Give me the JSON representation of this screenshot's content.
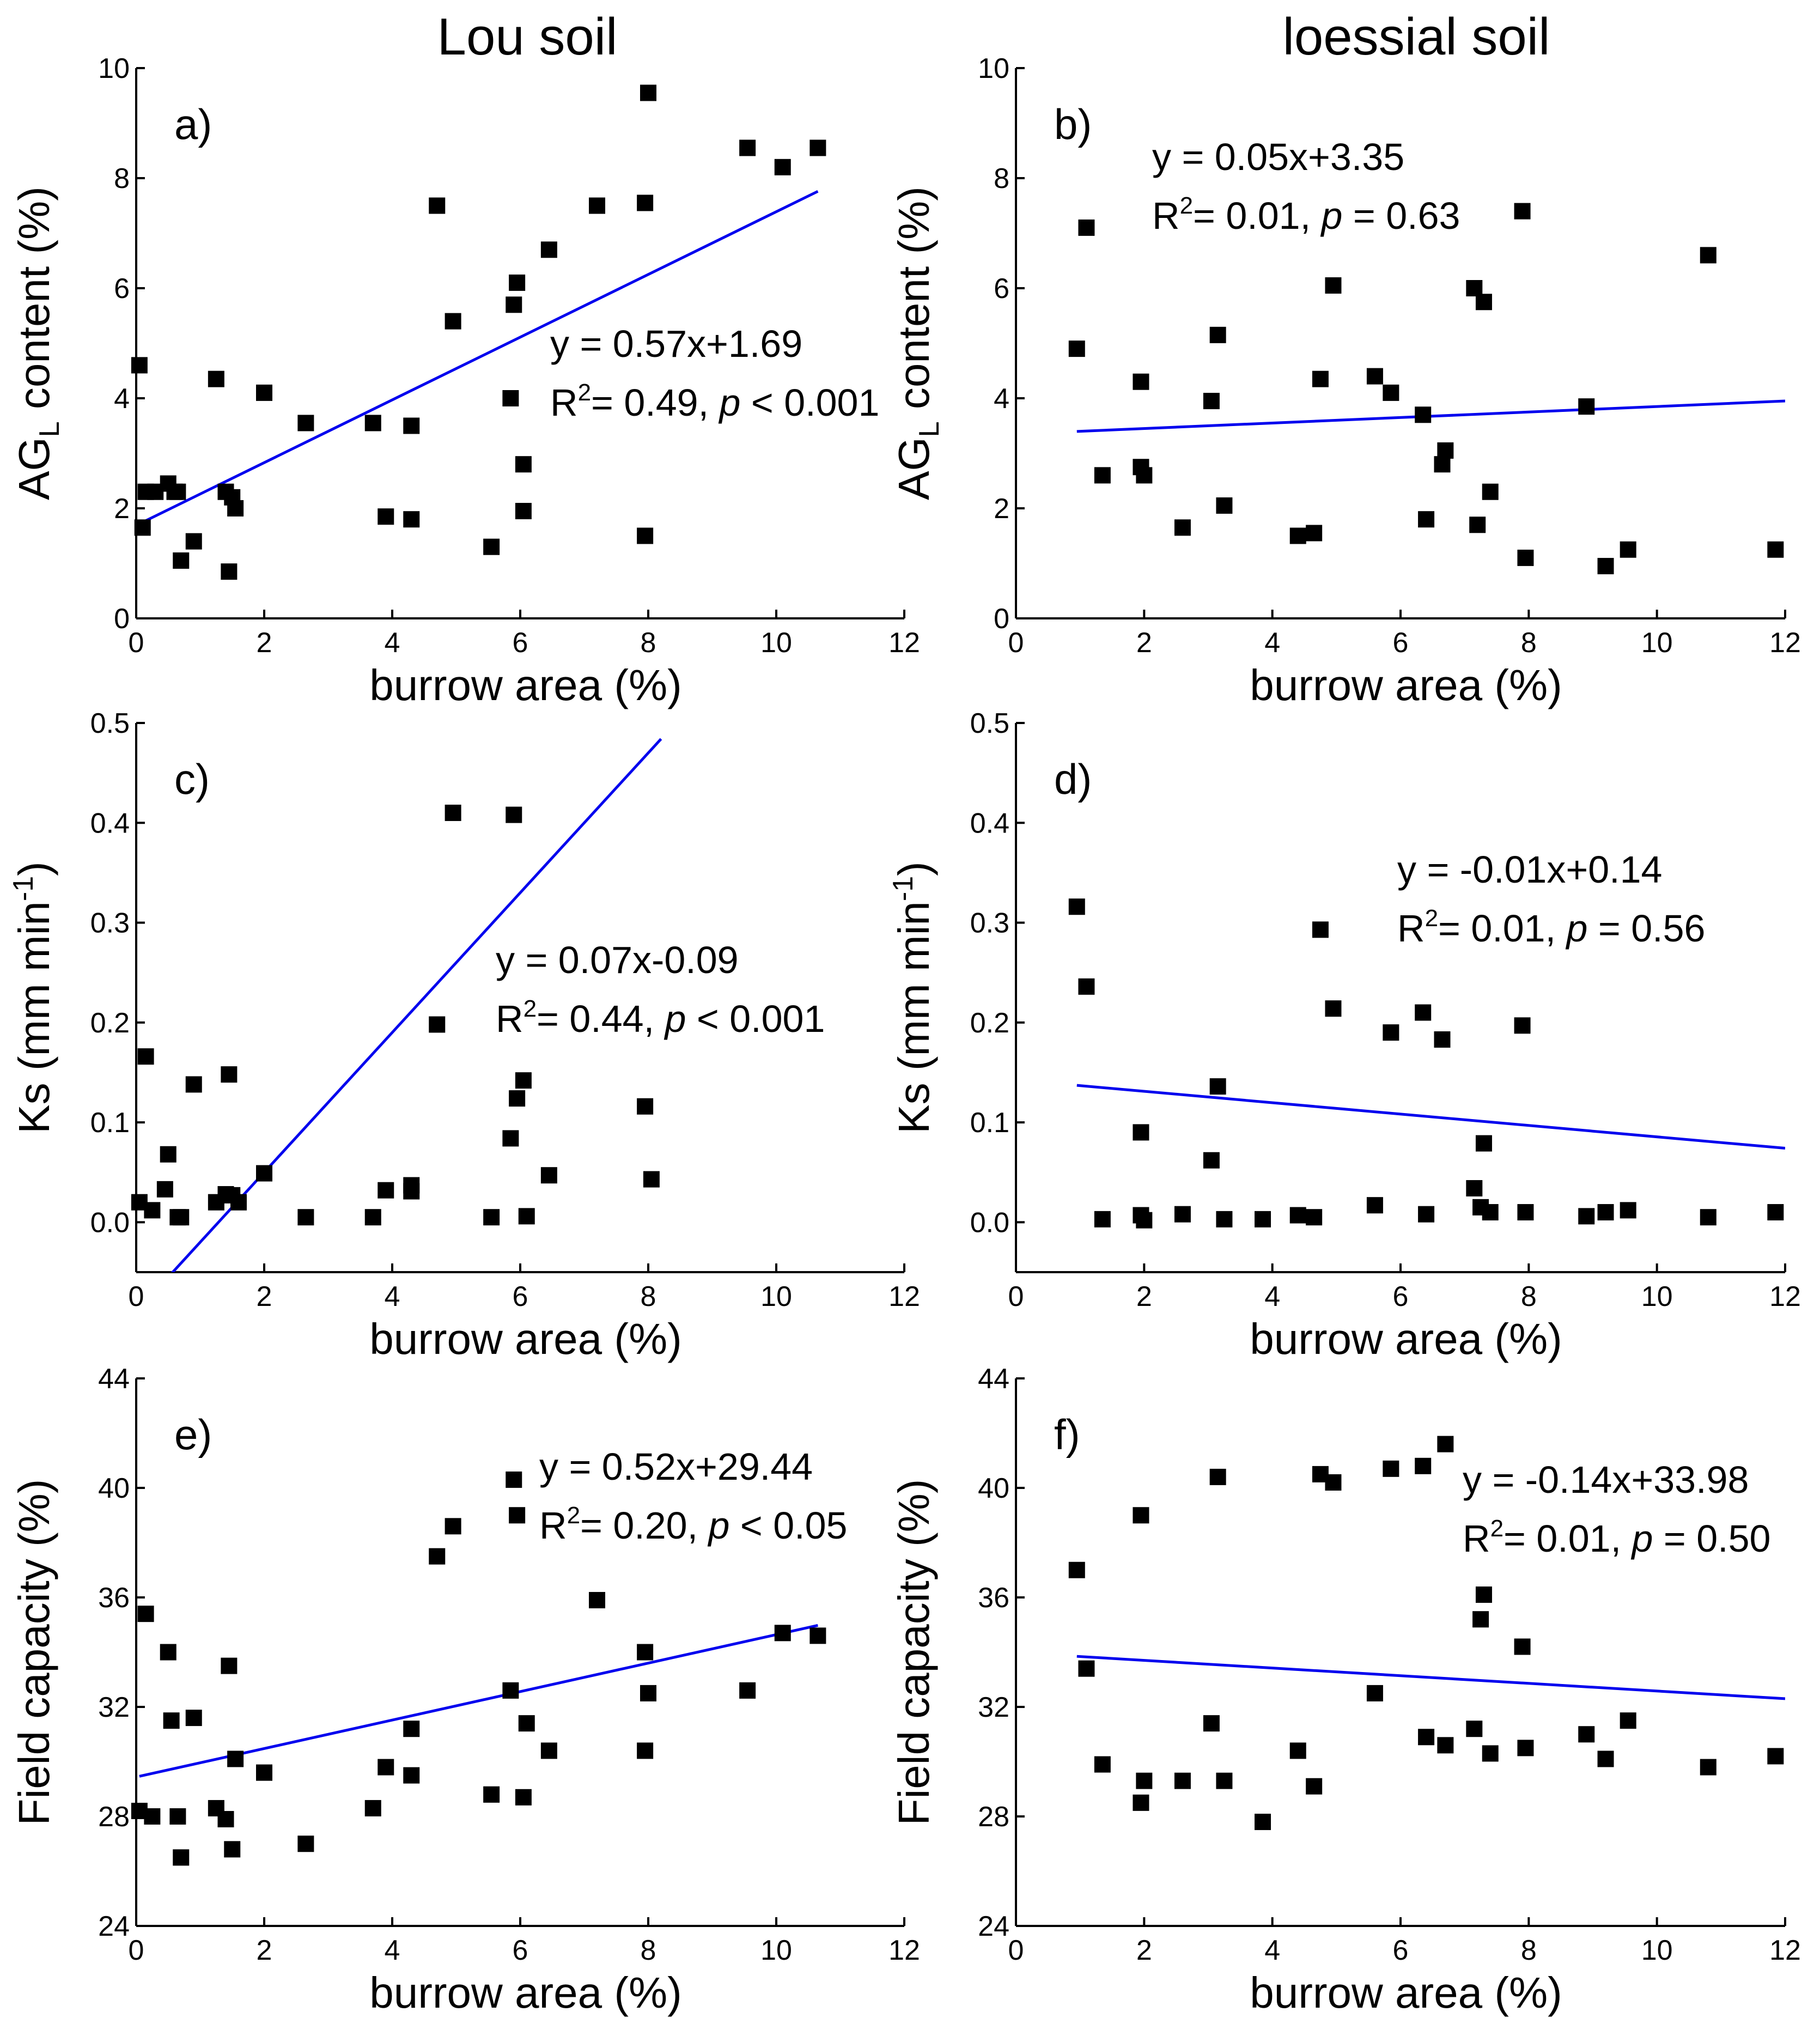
{
  "column_titles": [
    "Lou soil",
    "loessial soil"
  ],
  "chart_data": [
    {
      "panel": "a)",
      "type": "scatter",
      "column": 0,
      "row": 0,
      "xlabel": "burrow area (%)",
      "ylabel_parts": [
        "AG",
        "L",
        " content (%)"
      ],
      "xlim": [
        0,
        12
      ],
      "ylim": [
        0,
        10
      ],
      "xticks": [
        0,
        2,
        4,
        6,
        8,
        10,
        12
      ],
      "xtick_labels": [
        "0",
        "2",
        "4",
        "6",
        "8",
        "10",
        "12"
      ],
      "yticks": [
        0,
        2,
        4,
        6,
        8,
        10
      ],
      "ytick_labels": [
        "0",
        "2",
        "4",
        "6",
        "8",
        "10"
      ],
      "equation": "y = 0.57x+1.69",
      "r2_value": "= 0.49, ",
      "p_text": " < 0.001",
      "fit": {
        "slope": 0.57,
        "intercept": 1.69,
        "x_start": 0,
        "x_end": 10.65
      },
      "points": [
        [
          0.05,
          4.6
        ],
        [
          0.1,
          1.65
        ],
        [
          0.15,
          2.3
        ],
        [
          0.3,
          2.3
        ],
        [
          0.5,
          2.45
        ],
        [
          0.6,
          2.3
        ],
        [
          0.65,
          2.3
        ],
        [
          0.7,
          1.05
        ],
        [
          0.9,
          1.4
        ],
        [
          1.25,
          4.35
        ],
        [
          1.4,
          2.3
        ],
        [
          1.45,
          0.85
        ],
        [
          1.5,
          2.2
        ],
        [
          1.55,
          2.0
        ],
        [
          2.0,
          4.1
        ],
        [
          2.65,
          3.55
        ],
        [
          3.7,
          3.55
        ],
        [
          3.9,
          1.85
        ],
        [
          4.3,
          3.5
        ],
        [
          4.3,
          1.8
        ],
        [
          4.7,
          7.5
        ],
        [
          4.95,
          5.4
        ],
        [
          5.55,
          1.3
        ],
        [
          5.85,
          4.0
        ],
        [
          5.9,
          5.7
        ],
        [
          5.95,
          6.1
        ],
        [
          6.05,
          1.95
        ],
        [
          6.05,
          2.8
        ],
        [
          6.45,
          6.7
        ],
        [
          7.2,
          7.5
        ],
        [
          7.95,
          7.55
        ],
        [
          7.95,
          1.5
        ],
        [
          8.0,
          9.55
        ],
        [
          9.55,
          8.55
        ],
        [
          10.1,
          8.2
        ],
        [
          10.65,
          8.55
        ]
      ]
    },
    {
      "panel": "b)",
      "type": "scatter",
      "column": 1,
      "row": 0,
      "xlabel": "burrow area (%)",
      "ylabel_parts": [
        "AG",
        "L",
        " content (%)"
      ],
      "xlim": [
        0,
        12
      ],
      "ylim": [
        0,
        10
      ],
      "xticks": [
        0,
        2,
        4,
        6,
        8,
        10,
        12
      ],
      "xtick_labels": [
        "0",
        "2",
        "4",
        "6",
        "8",
        "10",
        "12"
      ],
      "yticks": [
        0,
        2,
        4,
        6,
        8,
        10
      ],
      "ytick_labels": [
        "0",
        "2",
        "4",
        "6",
        "8",
        "10"
      ],
      "equation": "y = 0.05x+3.35",
      "r2_value": "= 0.01, ",
      "p_text": " = 0.63",
      "fit": {
        "slope": 0.05,
        "intercept": 3.35,
        "x_start": 0.95,
        "x_end": 12
      },
      "points": [
        [
          0.95,
          4.9
        ],
        [
          1.1,
          7.1
        ],
        [
          1.35,
          2.6
        ],
        [
          1.95,
          4.3
        ],
        [
          1.95,
          2.75
        ],
        [
          2.0,
          2.6
        ],
        [
          2.6,
          1.65
        ],
        [
          3.05,
          3.95
        ],
        [
          3.15,
          5.15
        ],
        [
          3.25,
          2.05
        ],
        [
          4.4,
          1.5
        ],
        [
          4.65,
          1.55
        ],
        [
          4.75,
          4.35
        ],
        [
          4.95,
          6.05
        ],
        [
          5.6,
          4.4
        ],
        [
          5.85,
          4.1
        ],
        [
          6.35,
          3.7
        ],
        [
          6.4,
          1.8
        ],
        [
          6.65,
          2.8
        ],
        [
          6.7,
          3.05
        ],
        [
          7.15,
          6.0
        ],
        [
          7.2,
          1.7
        ],
        [
          7.3,
          5.75
        ],
        [
          7.4,
          2.3
        ],
        [
          7.9,
          7.4
        ],
        [
          7.95,
          1.1
        ],
        [
          8.9,
          3.85
        ],
        [
          9.2,
          0.95
        ],
        [
          9.55,
          1.25
        ],
        [
          10.8,
          6.6
        ],
        [
          11.85,
          1.25
        ]
      ]
    },
    {
      "panel": "c)",
      "type": "scatter",
      "column": 0,
      "row": 1,
      "xlabel": "burrow area (%)",
      "ylabel_parts": [
        "Ks (mm min",
        "-1",
        ")"
      ],
      "xlim": [
        0,
        12
      ],
      "ylim": [
        -0.05,
        0.5
      ],
      "xticks": [
        0,
        2,
        4,
        6,
        8,
        10,
        12
      ],
      "xtick_labels": [
        "0",
        "2",
        "4",
        "6",
        "8",
        "10",
        "12"
      ],
      "yticks": [
        0,
        0.1,
        0.2,
        0.3,
        0.4,
        0.5
      ],
      "ytick_labels": [
        "0.0",
        "0.1",
        "0.2",
        "0.3",
        "0.4",
        "0.5"
      ],
      "equation": "y = 0.07x-0.09",
      "r2_value": "= 0.44, ",
      "p_text": " < 0.001",
      "fit": {
        "slope": 0.07,
        "intercept": -0.09,
        "x_start": 0.5,
        "x_end": 8.2
      },
      "points": [
        [
          0.05,
          0.02
        ],
        [
          0.15,
          0.166
        ],
        [
          0.25,
          0.012
        ],
        [
          0.45,
          0.033
        ],
        [
          0.5,
          0.068
        ],
        [
          0.65,
          0.005
        ],
        [
          0.7,
          0.005
        ],
        [
          0.9,
          0.138
        ],
        [
          1.25,
          0.02
        ],
        [
          1.4,
          0.028
        ],
        [
          1.45,
          0.148
        ],
        [
          1.5,
          0.027
        ],
        [
          1.6,
          0.02
        ],
        [
          2.0,
          0.049
        ],
        [
          2.65,
          0.005
        ],
        [
          3.7,
          0.005
        ],
        [
          3.9,
          0.032
        ],
        [
          4.3,
          0.037
        ],
        [
          4.3,
          0.031
        ],
        [
          4.7,
          0.198
        ],
        [
          4.95,
          0.41
        ],
        [
          5.55,
          0.005
        ],
        [
          5.85,
          0.084
        ],
        [
          5.9,
          0.408
        ],
        [
          5.95,
          0.124
        ],
        [
          6.05,
          0.142
        ],
        [
          6.1,
          0.006
        ],
        [
          6.45,
          0.047
        ],
        [
          7.95,
          0.116
        ],
        [
          8.05,
          0.043
        ]
      ]
    },
    {
      "panel": "d)",
      "type": "scatter",
      "column": 1,
      "row": 1,
      "xlabel": "burrow area (%)",
      "ylabel_parts": [
        "Ks (mm min",
        "-1",
        ")"
      ],
      "xlim": [
        0,
        12
      ],
      "ylim": [
        -0.05,
        0.5
      ],
      "xticks": [
        0,
        2,
        4,
        6,
        8,
        10,
        12
      ],
      "xtick_labels": [
        "0",
        "2",
        "4",
        "6",
        "8",
        "10",
        "12"
      ],
      "yticks": [
        0,
        0.1,
        0.2,
        0.3,
        0.4,
        0.5
      ],
      "ytick_labels": [
        "0.0",
        "0.1",
        "0.2",
        "0.3",
        "0.4",
        "0.5"
      ],
      "equation": "y = -0.01x+0.14",
      "r2_value": "= 0.01, ",
      "p_text": " = 0.56",
      "fit": {
        "slope": -0.0057,
        "intercept": 0.1425,
        "x_start": 0.95,
        "x_end": 12
      },
      "points": [
        [
          0.95,
          0.316
        ],
        [
          1.1,
          0.236
        ],
        [
          1.35,
          0.003
        ],
        [
          1.95,
          0.09
        ],
        [
          1.95,
          0.007
        ],
        [
          2.0,
          0.002
        ],
        [
          2.6,
          0.008
        ],
        [
          3.05,
          0.062
        ],
        [
          3.15,
          0.136
        ],
        [
          3.25,
          0.003
        ],
        [
          3.85,
          0.003
        ],
        [
          4.4,
          0.007
        ],
        [
          4.65,
          0.005
        ],
        [
          4.75,
          0.293
        ],
        [
          4.95,
          0.214
        ],
        [
          5.6,
          0.017
        ],
        [
          5.85,
          0.19
        ],
        [
          6.35,
          0.21
        ],
        [
          6.4,
          0.008
        ],
        [
          6.65,
          0.183
        ],
        [
          7.15,
          0.034
        ],
        [
          7.25,
          0.015
        ],
        [
          7.3,
          0.079
        ],
        [
          7.4,
          0.01
        ],
        [
          7.9,
          0.197
        ],
        [
          7.95,
          0.01
        ],
        [
          8.9,
          0.006
        ],
        [
          9.2,
          0.01
        ],
        [
          9.55,
          0.012
        ],
        [
          10.8,
          0.005
        ],
        [
          11.85,
          0.01
        ]
      ]
    },
    {
      "panel": "e)",
      "type": "scatter",
      "column": 0,
      "row": 2,
      "xlabel": "burrow area (%)",
      "ylabel_parts": [
        "Field capacity (%)",
        "",
        ""
      ],
      "xlim": [
        0,
        12
      ],
      "ylim": [
        24,
        44
      ],
      "xticks": [
        0,
        2,
        4,
        6,
        8,
        10,
        12
      ],
      "xtick_labels": [
        "0",
        "2",
        "4",
        "6",
        "8",
        "10",
        "12"
      ],
      "yticks": [
        24,
        28,
        32,
        36,
        40,
        44
      ],
      "ytick_labels": [
        "24",
        "28",
        "32",
        "36",
        "40",
        "44"
      ],
      "equation": "y = 0.52x+29.44",
      "r2_value": "= 0.20, ",
      "p_text": " < 0.05",
      "fit": {
        "slope": 0.52,
        "intercept": 29.44,
        "x_start": 0.05,
        "x_end": 10.65
      },
      "points": [
        [
          0.05,
          28.2
        ],
        [
          0.15,
          35.4
        ],
        [
          0.25,
          28.0
        ],
        [
          0.5,
          34.0
        ],
        [
          0.55,
          31.5
        ],
        [
          0.65,
          28.0
        ],
        [
          0.7,
          26.5
        ],
        [
          0.9,
          31.6
        ],
        [
          1.25,
          28.3
        ],
        [
          1.4,
          27.9
        ],
        [
          1.45,
          33.5
        ],
        [
          1.5,
          26.8
        ],
        [
          1.55,
          30.1
        ],
        [
          2.0,
          29.6
        ],
        [
          2.65,
          27.0
        ],
        [
          3.7,
          28.3
        ],
        [
          3.9,
          29.8
        ],
        [
          4.3,
          31.2
        ],
        [
          4.3,
          29.5
        ],
        [
          4.7,
          37.5
        ],
        [
          4.95,
          38.6
        ],
        [
          5.55,
          28.8
        ],
        [
          5.85,
          32.6
        ],
        [
          5.9,
          40.3
        ],
        [
          5.95,
          39.0
        ],
        [
          6.05,
          28.7
        ],
        [
          6.1,
          31.4
        ],
        [
          6.45,
          30.4
        ],
        [
          7.2,
          35.9
        ],
        [
          7.95,
          34.0
        ],
        [
          8.0,
          32.5
        ],
        [
          7.95,
          30.4
        ],
        [
          9.55,
          32.6
        ],
        [
          10.1,
          34.7
        ],
        [
          10.65,
          34.6
        ]
      ]
    },
    {
      "panel": "f)",
      "type": "scatter",
      "column": 1,
      "row": 2,
      "xlabel": "burrow area (%)",
      "ylabel_parts": [
        "Field capacity (%)",
        "",
        ""
      ],
      "xlim": [
        0,
        12
      ],
      "ylim": [
        24,
        44
      ],
      "xticks": [
        0,
        2,
        4,
        6,
        8,
        10,
        12
      ],
      "xtick_labels": [
        "0",
        "2",
        "4",
        "6",
        "8",
        "10",
        "12"
      ],
      "yticks": [
        24,
        28,
        32,
        36,
        40,
        44
      ],
      "ytick_labels": [
        "24",
        "28",
        "32",
        "36",
        "40",
        "44"
      ],
      "equation": "y = -0.14x+33.98",
      "r2_value": "= 0.01, ",
      "p_text": " = 0.50",
      "fit": {
        "slope": -0.14,
        "intercept": 33.98,
        "x_start": 0.95,
        "x_end": 12
      },
      "points": [
        [
          0.95,
          37.0
        ],
        [
          1.1,
          33.4
        ],
        [
          1.35,
          29.9
        ],
        [
          1.95,
          39.0
        ],
        [
          1.95,
          28.5
        ],
        [
          2.0,
          29.3
        ],
        [
          2.6,
          29.3
        ],
        [
          3.05,
          31.4
        ],
        [
          3.15,
          40.4
        ],
        [
          3.25,
          29.3
        ],
        [
          3.85,
          27.8
        ],
        [
          4.4,
          30.4
        ],
        [
          4.65,
          29.1
        ],
        [
          4.75,
          40.5
        ],
        [
          4.95,
          40.2
        ],
        [
          5.6,
          32.5
        ],
        [
          5.85,
          40.7
        ],
        [
          6.35,
          40.8
        ],
        [
          6.4,
          30.9
        ],
        [
          6.7,
          41.6
        ],
        [
          6.7,
          30.6
        ],
        [
          7.15,
          31.2
        ],
        [
          7.25,
          35.2
        ],
        [
          7.3,
          36.1
        ],
        [
          7.4,
          30.3
        ],
        [
          7.9,
          34.2
        ],
        [
          7.95,
          30.5
        ],
        [
          8.9,
          31.0
        ],
        [
          9.2,
          30.1
        ],
        [
          9.55,
          31.5
        ],
        [
          10.8,
          29.8
        ],
        [
          11.85,
          30.2
        ]
      ]
    }
  ]
}
